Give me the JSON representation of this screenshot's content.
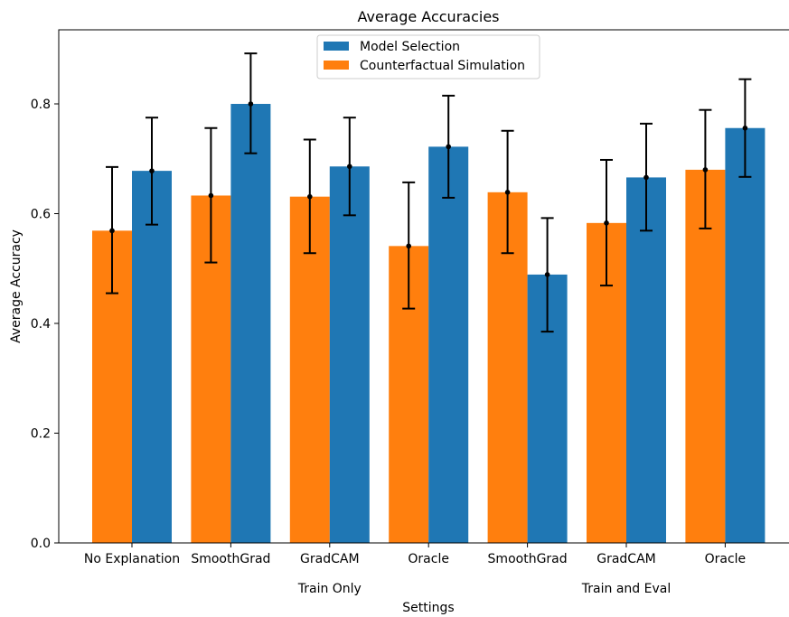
{
  "chart_data": {
    "type": "bar",
    "title": "Average Accuracies",
    "xlabel": "Settings",
    "ylabel": "Average Accuracy",
    "ylim": [
      0,
      0.935
    ],
    "yticks": [
      "0.0",
      "0.2",
      "0.4",
      "0.6",
      "0.8"
    ],
    "ytick_values": [
      0,
      0.2,
      0.4,
      0.6,
      0.8
    ],
    "grid": false,
    "legend_position": "top-center",
    "categories": [
      "No Explanation",
      "SmoothGrad",
      "GradCAM",
      "Oracle",
      "SmoothGrad",
      "GradCAM",
      "Oracle"
    ],
    "groups": [
      {
        "label": "Train Only",
        "categories": [
          1,
          2,
          3
        ]
      },
      {
        "label": "Train and Eval",
        "categories": [
          4,
          5,
          6
        ]
      }
    ],
    "series": [
      {
        "name": "Model Selection",
        "color": "#1f77b4",
        "values": [
          0.678,
          0.8,
          0.686,
          0.722,
          0.489,
          0.666,
          0.756
        ],
        "err_low": [
          0.58,
          0.71,
          0.597,
          0.629,
          0.385,
          0.569,
          0.667
        ],
        "err_high": [
          0.775,
          0.892,
          0.775,
          0.815,
          0.592,
          0.764,
          0.845
        ]
      },
      {
        "name": "Counterfactual Simulation",
        "color": "#ff7f0e",
        "values": [
          0.569,
          0.633,
          0.631,
          0.541,
          0.639,
          0.583,
          0.68
        ],
        "err_low": [
          0.455,
          0.511,
          0.528,
          0.427,
          0.528,
          0.469,
          0.573
        ],
        "err_high": [
          0.685,
          0.756,
          0.735,
          0.657,
          0.751,
          0.698,
          0.789
        ]
      }
    ]
  }
}
